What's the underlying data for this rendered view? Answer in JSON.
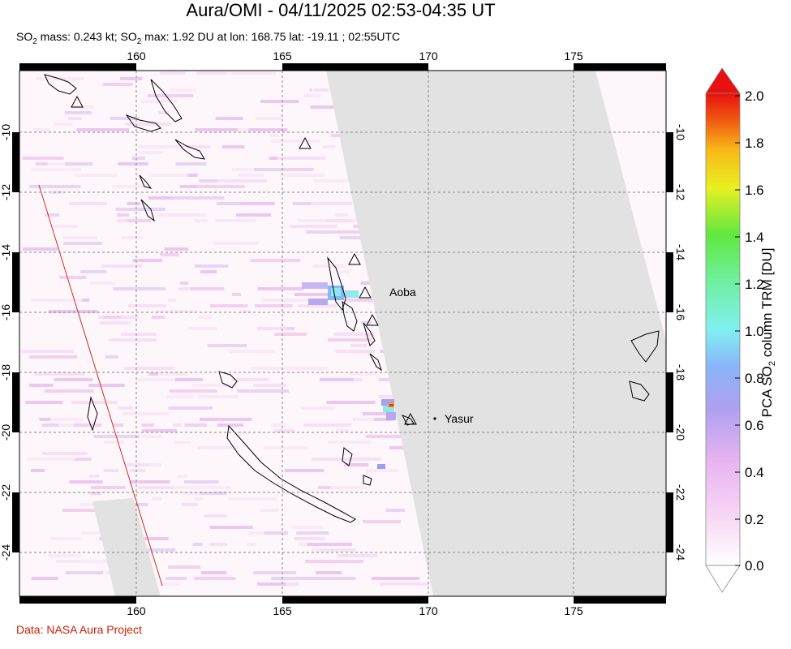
{
  "title": "Aura/OMI - 04/11/2025 02:53-04:35 UT",
  "subtitle": {
    "part1": "SO",
    "sub1": "2",
    "part2": " mass: 0.243 kt; SO",
    "sub2": "2",
    "part3": " max: 1.92 DU at lon: 168.75 lat: -19.11 ; 02:55UTC"
  },
  "credit": "Data: NASA Aura Project",
  "map": {
    "lon_ticks": [
      "160",
      "165",
      "170",
      "175"
    ],
    "lat_ticks": [
      "-10",
      "-12",
      "-14",
      "-16",
      "-18",
      "-20",
      "-22",
      "-24"
    ],
    "volcano_labels": [
      "Aoba",
      "Yasur"
    ]
  },
  "colorbar": {
    "label_pre": "PCA SO",
    "label_sub": "2",
    "label_post": " column TRM [DU]",
    "ticks": [
      "2.0",
      "1.8",
      "1.6",
      "1.4",
      "1.2",
      "1.0",
      "0.8",
      "0.6",
      "0.4",
      "0.2",
      "0.0"
    ],
    "colors": [
      "#ffffff",
      "#f5c8f0",
      "#c9a2f0",
      "#8fa0f5",
      "#7fe8f0",
      "#7ff0c0",
      "#77e860",
      "#c8f030",
      "#f8e020",
      "#f89018",
      "#f03010",
      "#e01010"
    ]
  }
}
